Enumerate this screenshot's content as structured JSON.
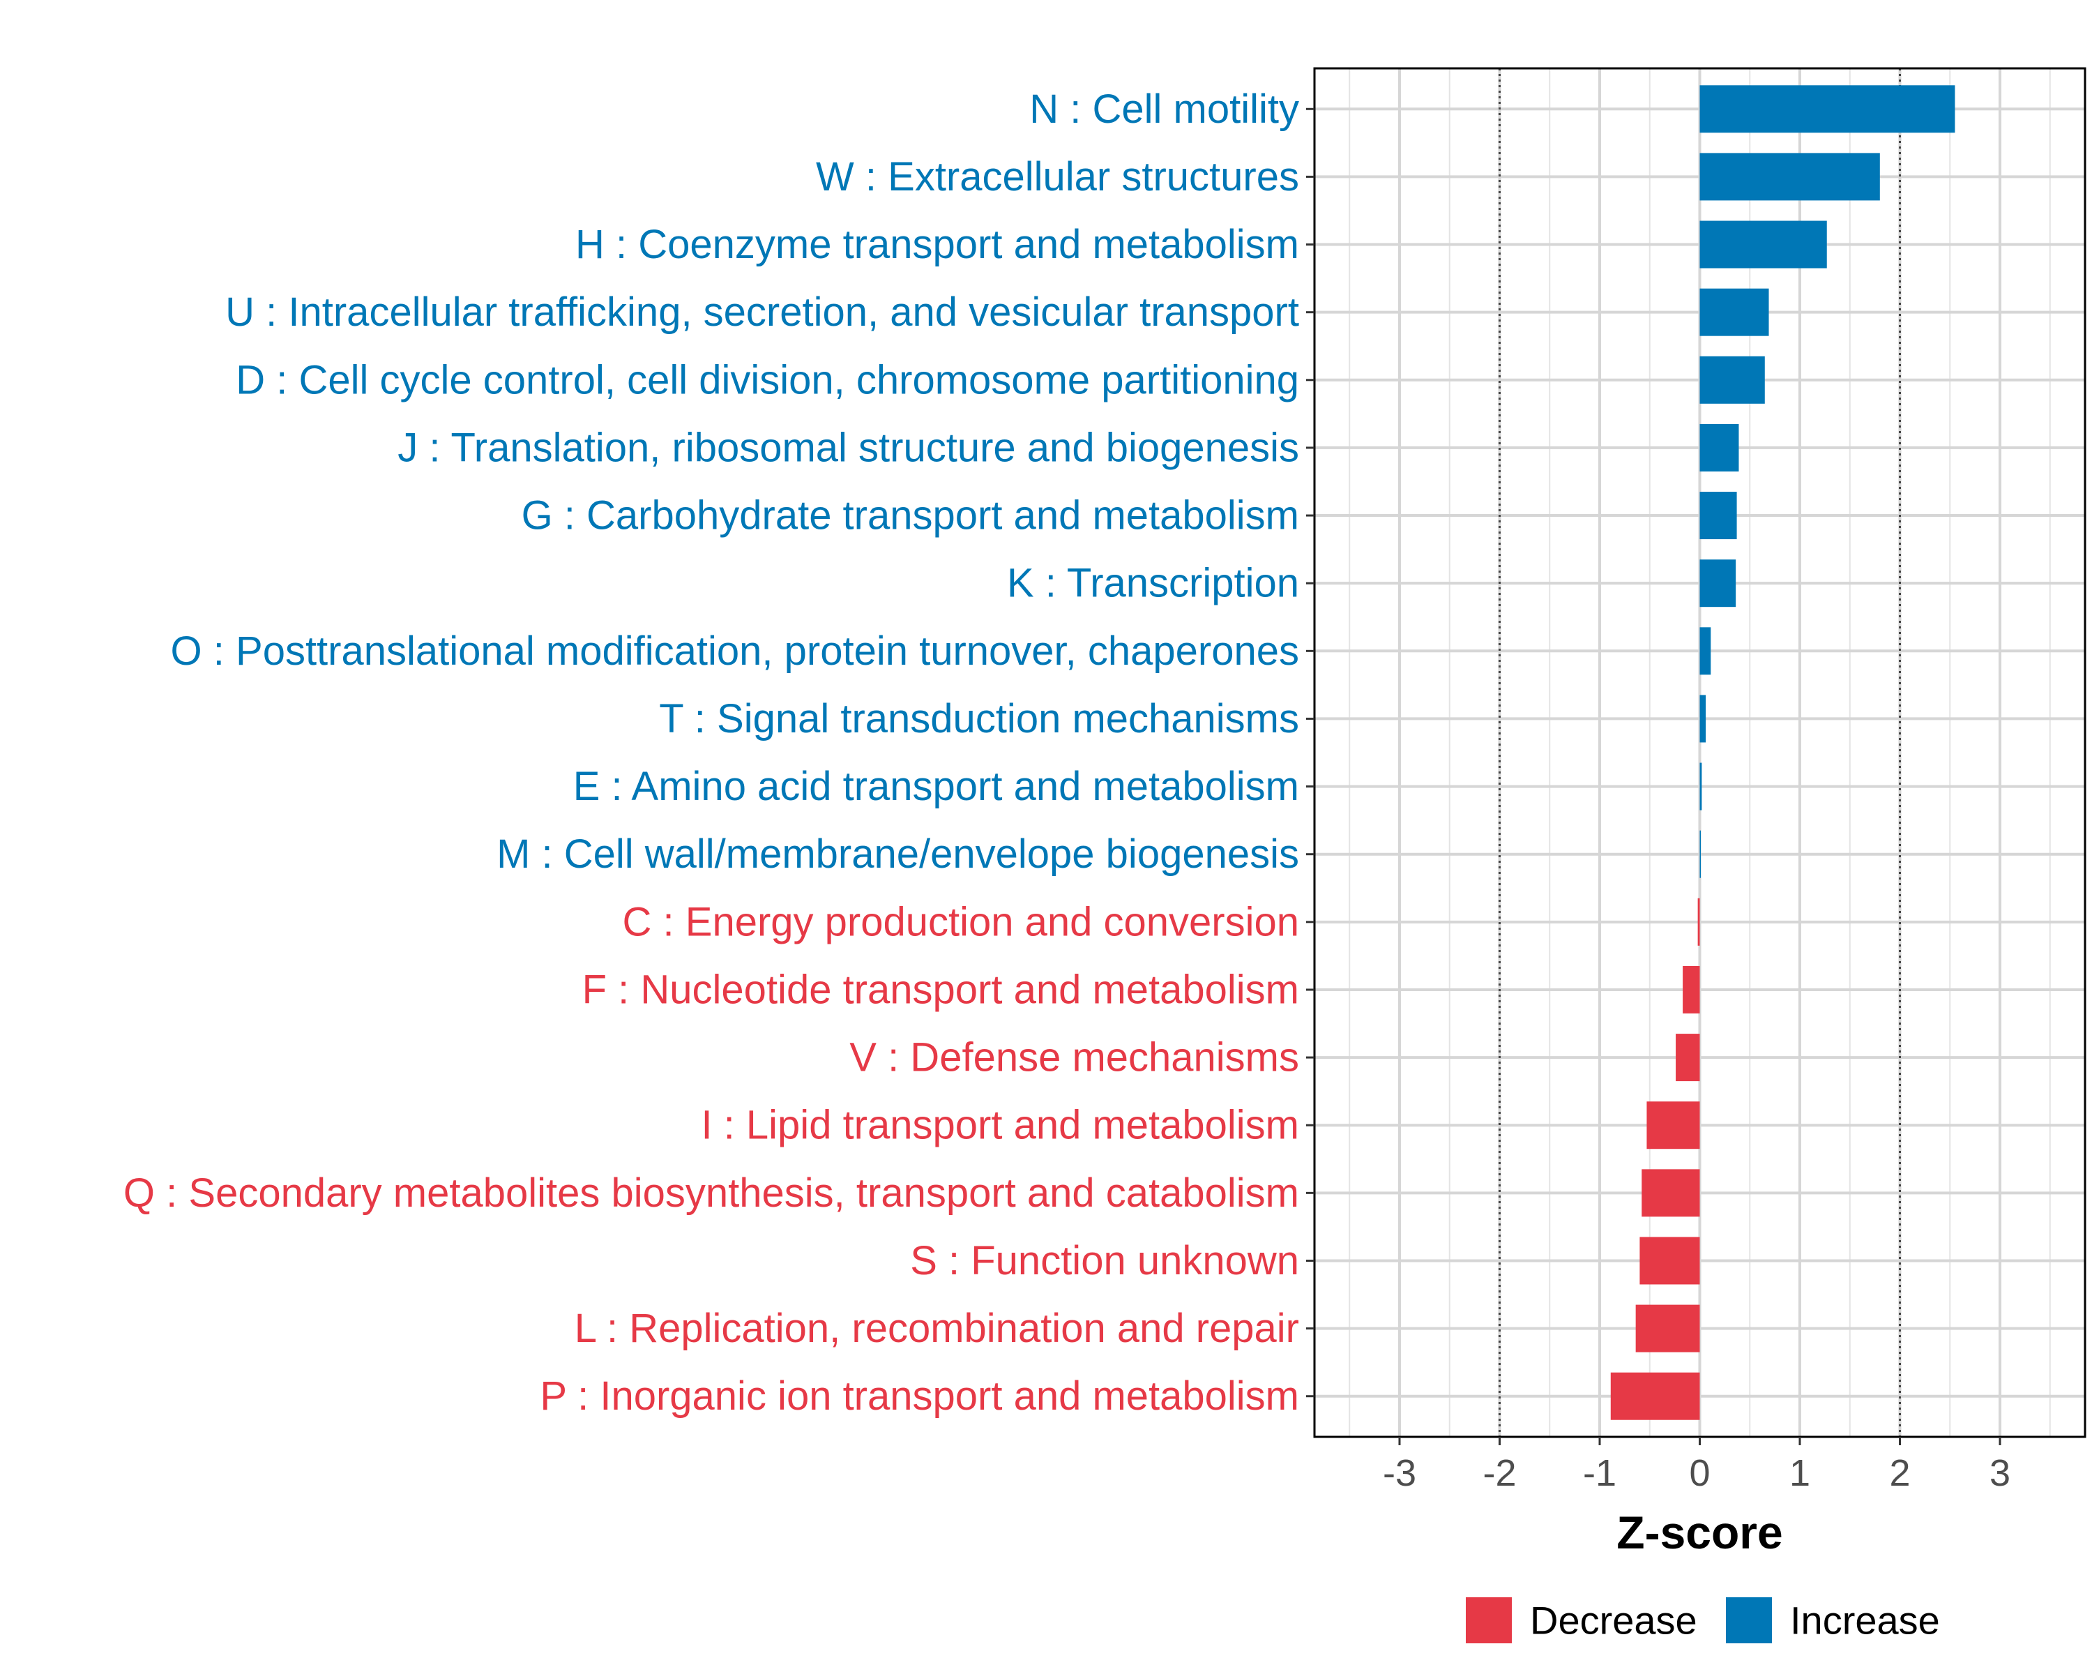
{
  "chart_data": {
    "type": "bar",
    "orientation": "horizontal",
    "xlabel": "Z-score",
    "ylabel": "",
    "title": "",
    "xlim": [
      -3.85,
      3.85
    ],
    "xticks": [
      -3,
      -2,
      -1,
      0,
      1,
      2,
      3
    ],
    "reference_lines": [
      -2,
      2
    ],
    "grid": true,
    "legend_position": "bottom",
    "colors": {
      "Decrease": "#e63946",
      "Increase": "#0077b6"
    },
    "legend": [
      {
        "label": "Decrease",
        "color": "#e63946"
      },
      {
        "label": "Increase",
        "color": "#0077b6"
      }
    ],
    "bars": [
      {
        "label": "N : Cell motility",
        "value": 2.55,
        "group": "Increase"
      },
      {
        "label": "W : Extracellular structures",
        "value": 1.8,
        "group": "Increase"
      },
      {
        "label": "H : Coenzyme transport and metabolism",
        "value": 1.27,
        "group": "Increase"
      },
      {
        "label": "U : Intracellular trafficking, secretion, and vesicular transport",
        "value": 0.69,
        "group": "Increase"
      },
      {
        "label": "D : Cell cycle control, cell division, chromosome partitioning",
        "value": 0.65,
        "group": "Increase"
      },
      {
        "label": "J : Translation, ribosomal structure and biogenesis",
        "value": 0.39,
        "group": "Increase"
      },
      {
        "label": "G : Carbohydrate transport and metabolism",
        "value": 0.37,
        "group": "Increase"
      },
      {
        "label": "K : Transcription",
        "value": 0.36,
        "group": "Increase"
      },
      {
        "label": "O : Posttranslational modification, protein turnover, chaperones",
        "value": 0.11,
        "group": "Increase"
      },
      {
        "label": "T : Signal transduction mechanisms",
        "value": 0.06,
        "group": "Increase"
      },
      {
        "label": "E : Amino acid transport and metabolism",
        "value": 0.02,
        "group": "Increase"
      },
      {
        "label": "M : Cell wall/membrane/envelope biogenesis",
        "value": 0.01,
        "group": "Increase"
      },
      {
        "label": "C : Energy production and conversion",
        "value": -0.02,
        "group": "Decrease"
      },
      {
        "label": "F : Nucleotide transport and metabolism",
        "value": -0.17,
        "group": "Decrease"
      },
      {
        "label": "V : Defense mechanisms",
        "value": -0.24,
        "group": "Decrease"
      },
      {
        "label": "I : Lipid transport and metabolism",
        "value": -0.53,
        "group": "Decrease"
      },
      {
        "label": "Q : Secondary metabolites biosynthesis, transport and catabolism",
        "value": -0.58,
        "group": "Decrease"
      },
      {
        "label": "S : Function unknown",
        "value": -0.6,
        "group": "Decrease"
      },
      {
        "label": "L : Replication, recombination and repair",
        "value": -0.64,
        "group": "Decrease"
      },
      {
        "label": "P : Inorganic ion transport and metabolism",
        "value": -0.89,
        "group": "Decrease"
      }
    ]
  }
}
